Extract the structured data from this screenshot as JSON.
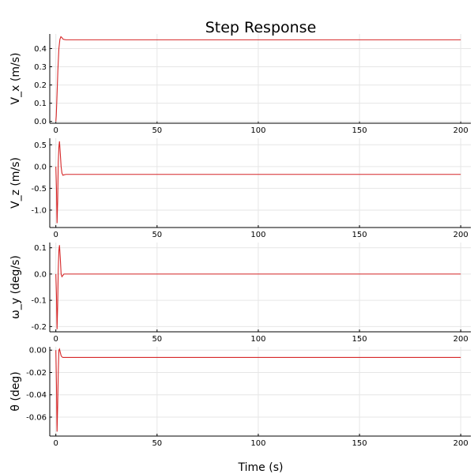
{
  "chart_data": {
    "type": "line",
    "title": "Step Response",
    "xlabel": "Time (s)",
    "colors": {
      "series": "#d62728",
      "axis": "#000000",
      "grid": "#e6e6e6"
    },
    "grid": true,
    "subplots": [
      {
        "ylabel": "V_x (m/s)",
        "xlim": [
          -3,
          205
        ],
        "ylim": [
          -0.01,
          0.48
        ],
        "xticks": [
          "0",
          "50",
          "100",
          "150",
          "200"
        ],
        "yticks": [
          "0.0",
          "0.1",
          "0.2",
          "0.3",
          "0.4"
        ],
        "series": [
          {
            "x": [
              0,
              0.2,
              0.5,
              1.0,
              1.5,
              2.0,
              2.5,
              3.0,
              3.5,
              4.0,
              5.0,
              200
            ],
            "y": [
              0,
              0.03,
              0.12,
              0.28,
              0.4,
              0.45,
              0.465,
              0.46,
              0.452,
              0.45,
              0.448,
              0.448
            ]
          }
        ]
      },
      {
        "ylabel": "V_z (m/s)",
        "xlim": [
          -3,
          205
        ],
        "ylim": [
          -1.4,
          0.65
        ],
        "xticks": [
          "0",
          "50",
          "100",
          "150",
          "200"
        ],
        "yticks": [
          "-1.0",
          "-0.5",
          "0.0",
          "0.5"
        ],
        "series": [
          {
            "x": [
              0,
              0.3,
              0.6,
              0.9,
              1.2,
              1.5,
              1.8,
              2.2,
              2.6,
              3.0,
              3.5,
              4.0,
              5.0,
              7.0,
              200
            ],
            "y": [
              0,
              -0.5,
              -1.3,
              -0.8,
              0.1,
              0.45,
              0.58,
              0.3,
              0.0,
              -0.15,
              -0.2,
              -0.19,
              -0.18,
              -0.18,
              -0.18
            ]
          }
        ]
      },
      {
        "ylabel": "ω_y (deg/s)",
        "xlim": [
          -3,
          205
        ],
        "ylim": [
          -0.22,
          0.12
        ],
        "xticks": [
          "0",
          "50",
          "100",
          "150",
          "200"
        ],
        "yticks": [
          "-0.2",
          "-0.1",
          "0.0",
          "0.1"
        ],
        "series": [
          {
            "x": [
              0,
              0.3,
              0.6,
              0.9,
              1.2,
              1.5,
              1.8,
              2.2,
              2.6,
              3.0,
              3.5,
              4.0,
              5.0,
              200
            ],
            "y": [
              0,
              -0.08,
              -0.21,
              -0.12,
              0.02,
              0.09,
              0.11,
              0.06,
              0.0,
              -0.01,
              -0.005,
              0.0,
              0.0,
              0.0
            ]
          }
        ]
      },
      {
        "ylabel": "θ (deg)",
        "xlim": [
          -3,
          205
        ],
        "ylim": [
          -0.077,
          0.003
        ],
        "xticks": [
          "0",
          "50",
          "100",
          "150",
          "200"
        ],
        "yticks": [
          "-0.06",
          "-0.04",
          "-0.02",
          "0.00"
        ],
        "series": [
          {
            "x": [
              0,
              0.3,
              0.6,
              0.9,
              1.2,
              1.5,
              1.8,
              2.2,
              2.6,
              3.0,
              3.5,
              4.0,
              5.0,
              200
            ],
            "y": [
              0,
              -0.03,
              -0.073,
              -0.05,
              -0.02,
              0.0,
              0.001,
              -0.002,
              -0.005,
              -0.006,
              -0.0065,
              -0.0065,
              -0.0065,
              -0.0065
            ]
          }
        ]
      }
    ]
  }
}
